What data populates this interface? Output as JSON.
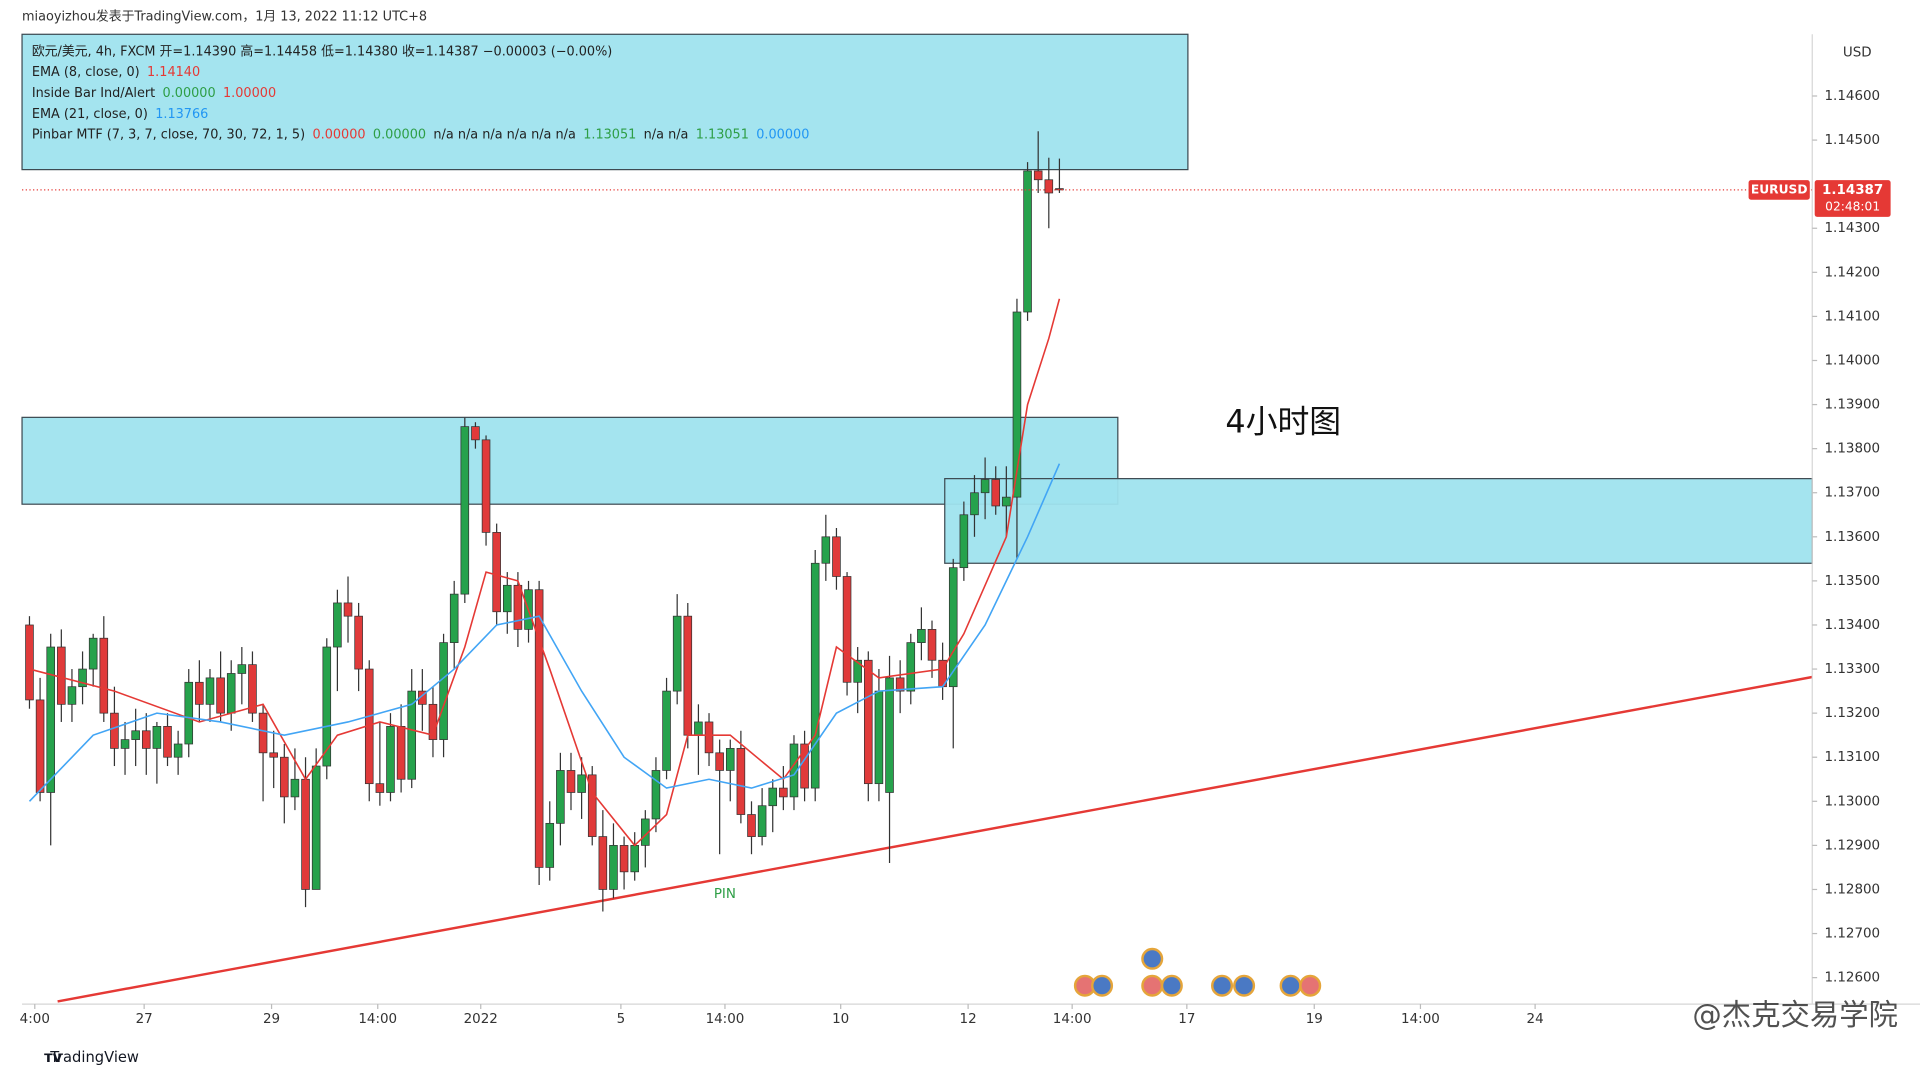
{
  "chart_data": {
    "type": "candlestick",
    "header": "miaoyizhou发表于TradingView.com，1月 13, 2022 11:12 UTC+8",
    "footer": "TradingView",
    "watermark": "@杰克交易学院",
    "annotation": "4小时图",
    "pin_label": "PIN",
    "currency": "USD",
    "legend": [
      [
        {
          "text": "欧元/美元, 4h, FXCM  开=1.14390  高=1.14458  低=1.14380  收=1.14387  −0.00003 (−0.00%)",
          "color": "#222222"
        }
      ],
      [
        {
          "text": "EMA (8, close, 0)",
          "color": "#222222"
        },
        {
          "text": "1.14140",
          "color": "#e53935"
        }
      ],
      [
        {
          "text": "Inside Bar Ind/Alert",
          "color": "#222222"
        },
        {
          "text": "0.00000",
          "color": "#2e9e46"
        },
        {
          "text": "1.00000",
          "color": "#e53935"
        }
      ],
      [
        {
          "text": "EMA (21, close, 0)",
          "color": "#222222"
        },
        {
          "text": "1.13766",
          "color": "#2196f3"
        }
      ],
      [
        {
          "text": "Pinbar MTF (7, 3, 7, close, 70, 30, 72, 1, 5)",
          "color": "#222222"
        },
        {
          "text": "0.00000",
          "color": "#e53935"
        },
        {
          "text": "0.00000",
          "color": "#2e9e46"
        },
        {
          "text": "n/a  n/a  n/a  n/a  n/a  n/a",
          "color": "#222222"
        },
        {
          "text": "1.13051",
          "color": "#2e9e46"
        },
        {
          "text": "n/a  n/a",
          "color": "#222222"
        },
        {
          "text": "1.13051",
          "color": "#2e9e46"
        },
        {
          "text": "0.00000",
          "color": "#2196f3"
        }
      ]
    ],
    "up_color": "#26a24c",
    "down_color": "#e03a3a",
    "xlim": [
      -0.7,
      167.9
    ],
    "ylim": [
      1.1254,
      1.1474
    ],
    "xticks": [
      {
        "value": 0.5,
        "label": "4:00"
      },
      {
        "value": 10.8,
        "label": "27"
      },
      {
        "value": 22.8,
        "label": "29"
      },
      {
        "value": 32.8,
        "label": "14:00"
      },
      {
        "value": 42.5,
        "label": "2022"
      },
      {
        "value": 55.7,
        "label": "5"
      },
      {
        "value": 65.5,
        "label": "14:00"
      },
      {
        "value": 76.4,
        "label": "10"
      },
      {
        "value": 88.4,
        "label": "12"
      },
      {
        "value": 98.2,
        "label": "14:00"
      },
      {
        "value": 109,
        "label": "17"
      },
      {
        "value": 121,
        "label": "19"
      },
      {
        "value": 131,
        "label": "14:00"
      },
      {
        "value": 141.8,
        "label": "24"
      }
    ],
    "yticks": [
      {
        "value": 1.146,
        "label": "1.14600"
      },
      {
        "value": 1.145,
        "label": "1.14500"
      },
      {
        "value": 1.143,
        "label": "1.14300"
      },
      {
        "value": 1.142,
        "label": "1.14200"
      },
      {
        "value": 1.141,
        "label": "1.14100"
      },
      {
        "value": 1.14,
        "label": "1.14000"
      },
      {
        "value": 1.139,
        "label": "1.13900"
      },
      {
        "value": 1.138,
        "label": "1.13800"
      },
      {
        "value": 1.137,
        "label": "1.13700"
      },
      {
        "value": 1.136,
        "label": "1.13600"
      },
      {
        "value": 1.135,
        "label": "1.13500"
      },
      {
        "value": 1.134,
        "label": "1.13400"
      },
      {
        "value": 1.133,
        "label": "1.13300"
      },
      {
        "value": 1.132,
        "label": "1.13200"
      },
      {
        "value": 1.131,
        "label": "1.13100"
      },
      {
        "value": 1.13,
        "label": "1.13000"
      },
      {
        "value": 1.129,
        "label": "1.12900"
      },
      {
        "value": 1.128,
        "label": "1.12800"
      },
      {
        "value": 1.127,
        "label": "1.12700"
      },
      {
        "value": 1.126,
        "label": "1.12600"
      }
    ],
    "ohlc": [
      [
        1.134,
        1.1342,
        1.1321,
        1.1323
      ],
      [
        1.1323,
        1.1328,
        1.13,
        1.1302
      ],
      [
        1.1302,
        1.1338,
        1.129,
        1.1335
      ],
      [
        1.1335,
        1.1339,
        1.1318,
        1.1322
      ],
      [
        1.1322,
        1.133,
        1.1318,
        1.1326
      ],
      [
        1.1326,
        1.1334,
        1.1322,
        1.133
      ],
      [
        1.133,
        1.1338,
        1.1326,
        1.1337
      ],
      [
        1.1337,
        1.1342,
        1.1318,
        1.132
      ],
      [
        1.132,
        1.1326,
        1.1308,
        1.1312
      ],
      [
        1.1312,
        1.1318,
        1.1306,
        1.1314
      ],
      [
        1.1314,
        1.1321,
        1.1308,
        1.1316
      ],
      [
        1.1316,
        1.132,
        1.1306,
        1.1312
      ],
      [
        1.1312,
        1.1318,
        1.1304,
        1.1317
      ],
      [
        1.1317,
        1.132,
        1.1308,
        1.131
      ],
      [
        1.131,
        1.1316,
        1.1306,
        1.1313
      ],
      [
        1.1313,
        1.133,
        1.131,
        1.1327
      ],
      [
        1.1327,
        1.1332,
        1.1318,
        1.1322
      ],
      [
        1.1322,
        1.133,
        1.1318,
        1.1328
      ],
      [
        1.1328,
        1.1334,
        1.1318,
        1.132
      ],
      [
        1.132,
        1.1332,
        1.1316,
        1.1329
      ],
      [
        1.1329,
        1.1335,
        1.1322,
        1.1331
      ],
      [
        1.1331,
        1.1334,
        1.1318,
        1.132
      ],
      [
        1.132,
        1.1322,
        1.13,
        1.1311
      ],
      [
        1.1311,
        1.1316,
        1.1303,
        1.131
      ],
      [
        1.131,
        1.1313,
        1.1295,
        1.1301
      ],
      [
        1.1301,
        1.1312,
        1.1298,
        1.1305
      ],
      [
        1.1305,
        1.131,
        1.1276,
        1.128
      ],
      [
        1.128,
        1.1312,
        1.128,
        1.1308
      ],
      [
        1.1308,
        1.1337,
        1.1305,
        1.1335
      ],
      [
        1.1335,
        1.1348,
        1.1325,
        1.1345
      ],
      [
        1.1345,
        1.1351,
        1.1336,
        1.1342
      ],
      [
        1.1342,
        1.1345,
        1.1325,
        1.133
      ],
      [
        1.133,
        1.1332,
        1.13,
        1.1304
      ],
      [
        1.1304,
        1.1318,
        1.1299,
        1.1302
      ],
      [
        1.1302,
        1.132,
        1.13,
        1.1317
      ],
      [
        1.1317,
        1.1322,
        1.1302,
        1.1305
      ],
      [
        1.1305,
        1.133,
        1.1303,
        1.1325
      ],
      [
        1.1325,
        1.133,
        1.1316,
        1.1322
      ],
      [
        1.1322,
        1.1326,
        1.131,
        1.1314
      ],
      [
        1.1314,
        1.1338,
        1.131,
        1.1336
      ],
      [
        1.1336,
        1.135,
        1.133,
        1.1347
      ],
      [
        1.1347,
        1.1387,
        1.1345,
        1.1385
      ],
      [
        1.1385,
        1.1386,
        1.138,
        1.1382
      ],
      [
        1.1382,
        1.1383,
        1.1358,
        1.1361
      ],
      [
        1.1361,
        1.1363,
        1.134,
        1.1343
      ],
      [
        1.1343,
        1.1352,
        1.1338,
        1.1349
      ],
      [
        1.1349,
        1.1352,
        1.1335,
        1.1339
      ],
      [
        1.1339,
        1.135,
        1.1336,
        1.1348
      ],
      [
        1.1348,
        1.135,
        1.1281,
        1.1285
      ],
      [
        1.1285,
        1.13,
        1.1282,
        1.1295
      ],
      [
        1.1295,
        1.1311,
        1.129,
        1.1307
      ],
      [
        1.1307,
        1.1311,
        1.1298,
        1.1302
      ],
      [
        1.1302,
        1.131,
        1.1296,
        1.1306
      ],
      [
        1.1306,
        1.1308,
        1.129,
        1.1292
      ],
      [
        1.1292,
        1.1298,
        1.1275,
        1.128
      ],
      [
        1.128,
        1.1295,
        1.1278,
        1.129
      ],
      [
        1.129,
        1.1292,
        1.128,
        1.1284
      ],
      [
        1.1284,
        1.1293,
        1.1282,
        1.129
      ],
      [
        1.129,
        1.1298,
        1.1285,
        1.1296
      ],
      [
        1.1296,
        1.131,
        1.1293,
        1.1307
      ],
      [
        1.1307,
        1.1328,
        1.1305,
        1.1325
      ],
      [
        1.1325,
        1.1347,
        1.1322,
        1.1342
      ],
      [
        1.1342,
        1.1345,
        1.1312,
        1.1315
      ],
      [
        1.1315,
        1.1322,
        1.1306,
        1.1318
      ],
      [
        1.1318,
        1.132,
        1.1308,
        1.1311
      ],
      [
        1.1311,
        1.1314,
        1.1288,
        1.1307
      ],
      [
        1.1307,
        1.1314,
        1.13,
        1.1312
      ],
      [
        1.1312,
        1.1316,
        1.1295,
        1.1297
      ],
      [
        1.1297,
        1.13,
        1.1288,
        1.1292
      ],
      [
        1.1292,
        1.1303,
        1.129,
        1.1299
      ],
      [
        1.1299,
        1.1305,
        1.1293,
        1.1303
      ],
      [
        1.1303,
        1.1308,
        1.1298,
        1.1301
      ],
      [
        1.1301,
        1.1315,
        1.1298,
        1.1313
      ],
      [
        1.1313,
        1.1316,
        1.13,
        1.1303
      ],
      [
        1.1303,
        1.1357,
        1.13,
        1.1354
      ],
      [
        1.1354,
        1.1365,
        1.135,
        1.136
      ],
      [
        1.136,
        1.1362,
        1.1348,
        1.1351
      ],
      [
        1.1351,
        1.1352,
        1.1324,
        1.1327
      ],
      [
        1.1327,
        1.1335,
        1.132,
        1.1332
      ],
      [
        1.1332,
        1.1334,
        1.13,
        1.1304
      ],
      [
        1.1304,
        1.133,
        1.13,
        1.1325
      ],
      [
        1.1302,
        1.1333,
        1.1286,
        1.1328
      ],
      [
        1.1328,
        1.1332,
        1.132,
        1.1325
      ],
      [
        1.1325,
        1.1338,
        1.1322,
        1.1336
      ],
      [
        1.1336,
        1.1344,
        1.1332,
        1.1339
      ],
      [
        1.1339,
        1.1341,
        1.1328,
        1.1332
      ],
      [
        1.1332,
        1.1336,
        1.1323,
        1.1326
      ],
      [
        1.1326,
        1.1355,
        1.1312,
        1.1353
      ],
      [
        1.1353,
        1.1368,
        1.135,
        1.1365
      ],
      [
        1.1365,
        1.1374,
        1.136,
        1.137
      ],
      [
        1.137,
        1.1378,
        1.1364,
        1.1373
      ],
      [
        1.1373,
        1.1376,
        1.1365,
        1.1367
      ],
      [
        1.1367,
        1.1376,
        1.136,
        1.1369
      ],
      [
        1.1369,
        1.1414,
        1.1355,
        1.1411
      ],
      [
        1.1411,
        1.1445,
        1.1409,
        1.1443
      ],
      [
        1.1443,
        1.1452,
        1.1438,
        1.1441
      ],
      [
        1.1441,
        1.1446,
        1.143,
        1.1438
      ],
      [
        1.1439,
        1.14458,
        1.1438,
        1.14387
      ]
    ],
    "lines": [
      {
        "name": "EMA (8, close, 0)",
        "color": "#e53935",
        "x": [
          0,
          8,
          16,
          22,
          26,
          29,
          33,
          38,
          41,
          43,
          46,
          49,
          53,
          57,
          60,
          62,
          66,
          71,
          74,
          76,
          80,
          86,
          88,
          92,
          94,
          96,
          97
        ],
        "values": [
          1.133,
          1.1325,
          1.1318,
          1.1322,
          1.1305,
          1.1315,
          1.1318,
          1.1315,
          1.1335,
          1.1352,
          1.135,
          1.133,
          1.1302,
          1.129,
          1.1297,
          1.1315,
          1.1315,
          1.1305,
          1.1315,
          1.1335,
          1.1328,
          1.133,
          1.1338,
          1.136,
          1.139,
          1.1405,
          1.1414
        ]
      },
      {
        "name": "EMA (21, close, 0)",
        "color": "#42a5f5",
        "x": [
          0,
          6,
          12,
          18,
          24,
          30,
          36,
          40,
          44,
          48,
          52,
          56,
          60,
          64,
          68,
          72,
          76,
          80,
          86,
          90,
          94,
          97
        ],
        "values": [
          1.13,
          1.1315,
          1.132,
          1.1318,
          1.1315,
          1.1318,
          1.1322,
          1.133,
          1.134,
          1.1342,
          1.1325,
          1.131,
          1.1303,
          1.1305,
          1.1303,
          1.1306,
          1.132,
          1.1325,
          1.1326,
          1.134,
          1.136,
          1.13766
        ]
      }
    ],
    "zones": [
      {
        "x": [
          -0.7,
          109.1
        ],
        "y": [
          1.14433,
          1.1474
        ]
      },
      {
        "x": [
          -0.7,
          102.5
        ],
        "y": [
          1.13674,
          1.13871
        ]
      },
      {
        "x": [
          86.2,
          167.9
        ],
        "y": [
          1.1354,
          1.13732
        ]
      }
    ],
    "trendline": {
      "x": [
        2.65,
        167.9
      ],
      "y": [
        1.12546,
        1.13282
      ],
      "color": "#e53935"
    },
    "price_tag": {
      "symbol": "EURUSD",
      "label": "1.14387",
      "countdown": "02:48:01",
      "color": "#e53935"
    }
  }
}
